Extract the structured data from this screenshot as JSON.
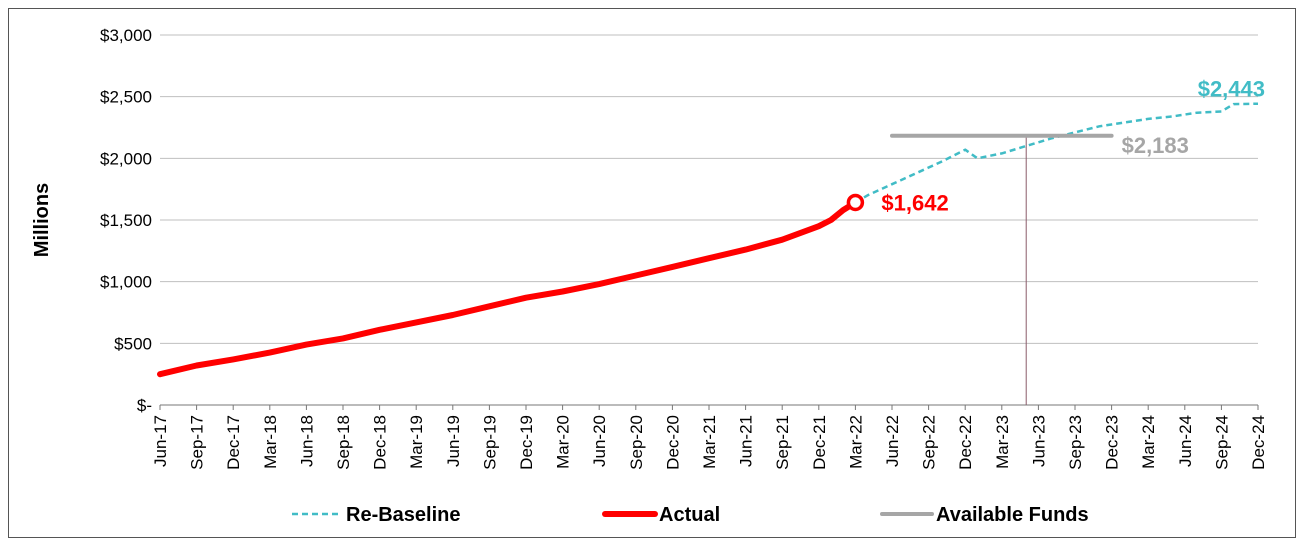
{
  "chart_data": {
    "type": "line",
    "ylabel": "Millions",
    "ylim": [
      0,
      3000
    ],
    "y_ticks": [
      {
        "value": 0,
        "label": "$-"
      },
      {
        "value": 500,
        "label": "$500"
      },
      {
        "value": 1000,
        "label": "$1,000"
      },
      {
        "value": 1500,
        "label": "$1,500"
      },
      {
        "value": 2000,
        "label": "$2,000"
      },
      {
        "value": 2500,
        "label": "$2,500"
      },
      {
        "value": 3000,
        "label": "$3,000"
      }
    ],
    "x_range": [
      "2017-06",
      "2024-12"
    ],
    "x_ticks": [
      "Jun-17",
      "Sep-17",
      "Dec-17",
      "Mar-18",
      "Jun-18",
      "Sep-18",
      "Dec-18",
      "Mar-19",
      "Jun-19",
      "Sep-19",
      "Dec-19",
      "Mar-20",
      "Jun-20",
      "Sep-20",
      "Dec-20",
      "Mar-21",
      "Jun-21",
      "Sep-21",
      "Dec-21",
      "Mar-22",
      "Jun-22",
      "Sep-22",
      "Dec-22",
      "Mar-23",
      "Jun-23",
      "Sep-23",
      "Dec-23",
      "Mar-24",
      "Jun-24",
      "Sep-24",
      "Dec-24"
    ],
    "grid": true,
    "legend_position": "bottom",
    "series": [
      {
        "name": "Re-Baseline",
        "style": "dashed",
        "color": "#41bcc6",
        "points": [
          [
            "2022-03",
            1642
          ],
          [
            "2022-04",
            1700
          ],
          [
            "2022-06",
            1790
          ],
          [
            "2022-08",
            1880
          ],
          [
            "2022-10",
            1970
          ],
          [
            "2022-11",
            2020
          ],
          [
            "2022-12",
            2070
          ],
          [
            "2023-01",
            2000
          ],
          [
            "2023-03",
            2040
          ],
          [
            "2023-05",
            2100
          ],
          [
            "2023-07",
            2160
          ],
          [
            "2023-09",
            2210
          ],
          [
            "2023-11",
            2260
          ],
          [
            "2024-01",
            2290
          ],
          [
            "2024-03",
            2320
          ],
          [
            "2024-05",
            2340
          ],
          [
            "2024-07",
            2370
          ],
          [
            "2024-09",
            2380
          ],
          [
            "2024-10",
            2440
          ],
          [
            "2024-12",
            2443
          ]
        ]
      },
      {
        "name": "Actual",
        "style": "solid",
        "color": "#ff0000",
        "points": [
          [
            "2017-06",
            250
          ],
          [
            "2017-09",
            320
          ],
          [
            "2017-12",
            370
          ],
          [
            "2018-03",
            425
          ],
          [
            "2018-06",
            490
          ],
          [
            "2018-09",
            540
          ],
          [
            "2018-12",
            610
          ],
          [
            "2019-03",
            670
          ],
          [
            "2019-06",
            730
          ],
          [
            "2019-09",
            800
          ],
          [
            "2019-12",
            870
          ],
          [
            "2020-03",
            920
          ],
          [
            "2020-06",
            980
          ],
          [
            "2020-09",
            1050
          ],
          [
            "2020-12",
            1120
          ],
          [
            "2021-03",
            1190
          ],
          [
            "2021-06",
            1260
          ],
          [
            "2021-09",
            1340
          ],
          [
            "2021-12",
            1450
          ],
          [
            "2022-01",
            1500
          ],
          [
            "2022-02",
            1580
          ],
          [
            "2022-03",
            1642
          ]
        ]
      },
      {
        "name": "Available Funds",
        "style": "solid",
        "color": "#a6a6a6",
        "points": [
          [
            "2022-06",
            2183
          ],
          [
            "2023-12",
            2183
          ]
        ]
      }
    ],
    "annotations": [
      {
        "label": "$1,642",
        "x": "2022-03",
        "y": 1642,
        "color": "#ff0000",
        "marker": "open-circle"
      },
      {
        "label": "$2,183",
        "x": "2023-12",
        "y": 2183,
        "color": "#a6a6a6"
      },
      {
        "label": "$2,443",
        "x": "2024-12",
        "y": 2443,
        "color": "#41bcc6"
      }
    ],
    "reference_line": {
      "x": "2023-05",
      "color": "#8a5a6a"
    }
  }
}
